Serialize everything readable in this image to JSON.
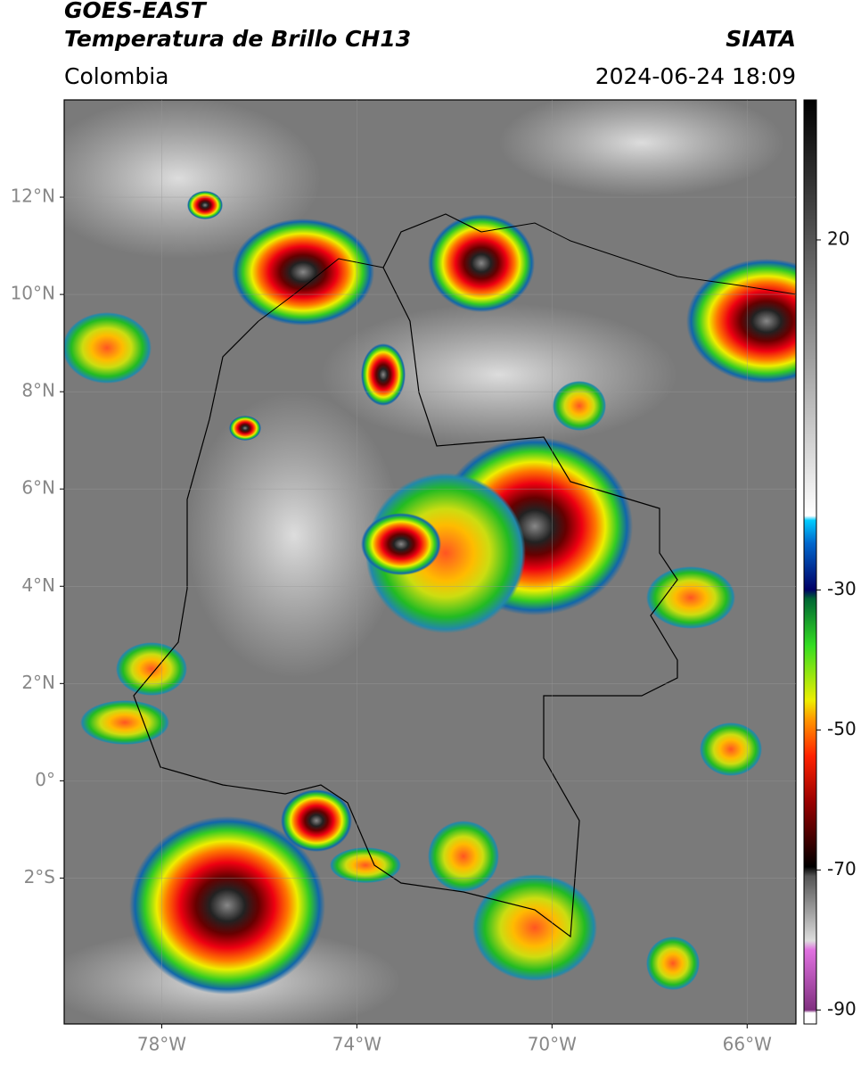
{
  "header": {
    "title": "GOES-EAST",
    "subtitle": "Temperatura de Brillo CH13",
    "source": "SIATA",
    "region": "Colombia",
    "datetime": "2024-06-24 18:09"
  },
  "map": {
    "xlim": [
      -80,
      -65
    ],
    "ylim": [
      -5,
      14
    ],
    "xticks": [
      {
        "value": -78,
        "label": "78°W"
      },
      {
        "value": -74,
        "label": "74°W"
      },
      {
        "value": -70,
        "label": "70°W"
      },
      {
        "value": -66,
        "label": "66°W"
      }
    ],
    "yticks": [
      {
        "value": 12,
        "label": "12°N"
      },
      {
        "value": 10,
        "label": "10°N"
      },
      {
        "value": 8,
        "label": "8°N"
      },
      {
        "value": 6,
        "label": "6°N"
      },
      {
        "value": 4,
        "label": "4°N"
      },
      {
        "value": 2,
        "label": "2°N"
      },
      {
        "value": 0,
        "label": "0°"
      },
      {
        "value": -2,
        "label": "2°S"
      }
    ],
    "grid": true
  },
  "colorbar": {
    "clim": [
      -92,
      40
    ],
    "ticks": [
      20,
      -30,
      -50,
      -70,
      -90
    ]
  }
}
